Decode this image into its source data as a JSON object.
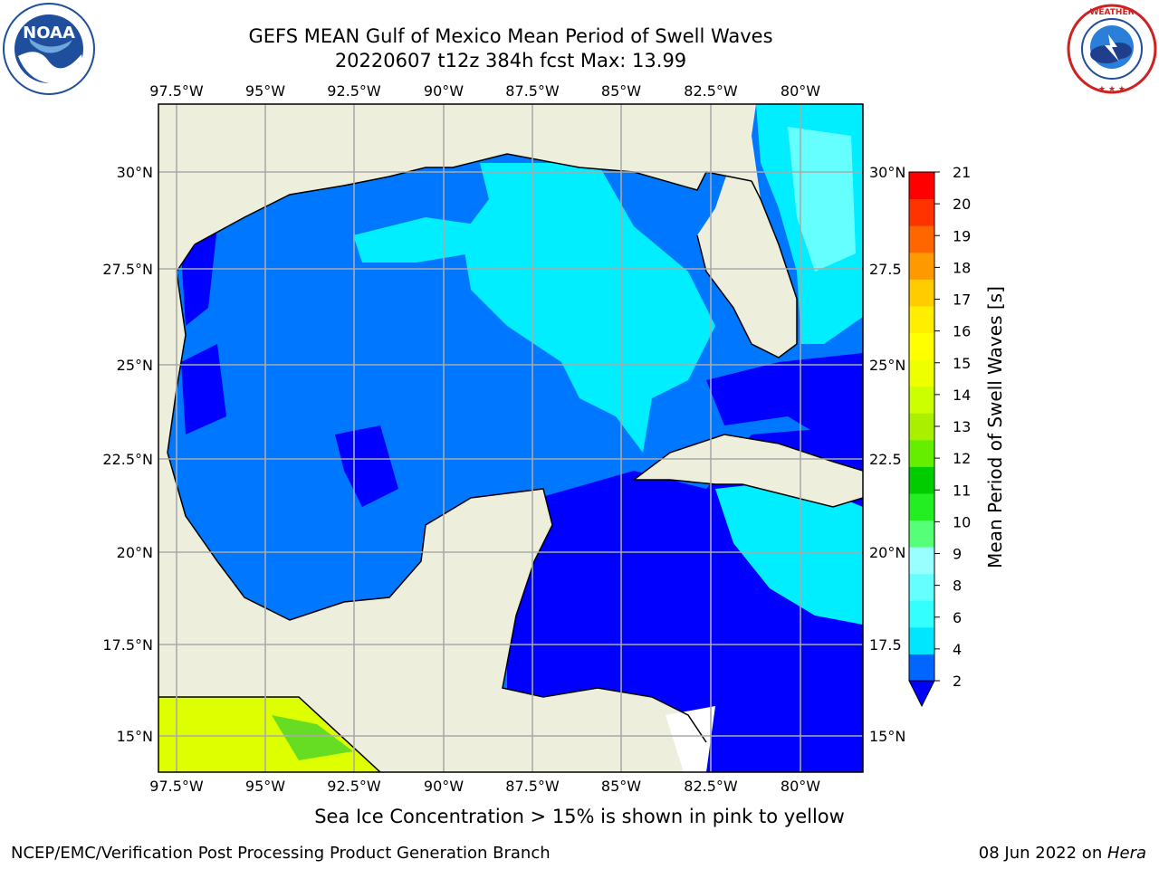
{
  "title": {
    "line1": "GEFS MEAN Gulf of Mexico Mean Period of Swell Waves",
    "line2": "20220607 t12z 384h fcst   Max: 13.99"
  },
  "logos": {
    "left": {
      "name": "noaa-logo",
      "text": "NOAA",
      "ring_text": "NATIONAL OCEANIC AND ATMOSPHERIC ADMINISTRATION · U.S. DEPARTMENT OF COMMERCE"
    },
    "right": {
      "name": "nws-logo",
      "ring_text": "NATIONAL WEATHER SERVICE"
    }
  },
  "map": {
    "lon_ticks": [
      "97.5°W",
      "95°W",
      "92.5°W",
      "90°W",
      "87.5°W",
      "85°W",
      "82.5°W",
      "80°W"
    ],
    "lat_ticks_left": [
      "30°N",
      "27.5°N",
      "25°N",
      "22.5°N",
      "20°N",
      "17.5°N",
      "15°N"
    ],
    "lat_ticks_right": [
      "30°N",
      "27.5",
      "25°N",
      "22.5",
      "20°N",
      "17.5",
      "15°N"
    ],
    "extent": {
      "lon_min": -98,
      "lon_max": -79,
      "lat_min": 14,
      "lat_max": 31.8
    },
    "colors": {
      "land": "#EEEEDC",
      "grid": "#AAAAAA",
      "coast": "#000000"
    }
  },
  "colorbar": {
    "label": "Mean Period of Swell Waves [s]",
    "ticks": [
      "2",
      "4",
      "6",
      "8",
      "9",
      "10",
      "11",
      "12",
      "13",
      "14",
      "15",
      "16",
      "17",
      "18",
      "19",
      "20",
      "21"
    ],
    "colors": [
      "#0066FF",
      "#00E6FF",
      "#33FFFF",
      "#66FFFF",
      "#99FFFF",
      "#55FF77",
      "#22EE22",
      "#00CC00",
      "#66EE00",
      "#AAEE00",
      "#CCFF00",
      "#EEFF00",
      "#FFFF00",
      "#FFEE00",
      "#FFCC00",
      "#FF9900",
      "#FF6600",
      "#FF3300",
      "#FF0000"
    ],
    "under_color": "#0000FF"
  },
  "note": "Sea Ice Concentration > 15% is shown in pink to yellow",
  "footer": {
    "left": "NCEP/EMC/Verification Post Processing Product Generation Branch",
    "date": "08 Jun 2022 on ",
    "machine": "Hera"
  }
}
